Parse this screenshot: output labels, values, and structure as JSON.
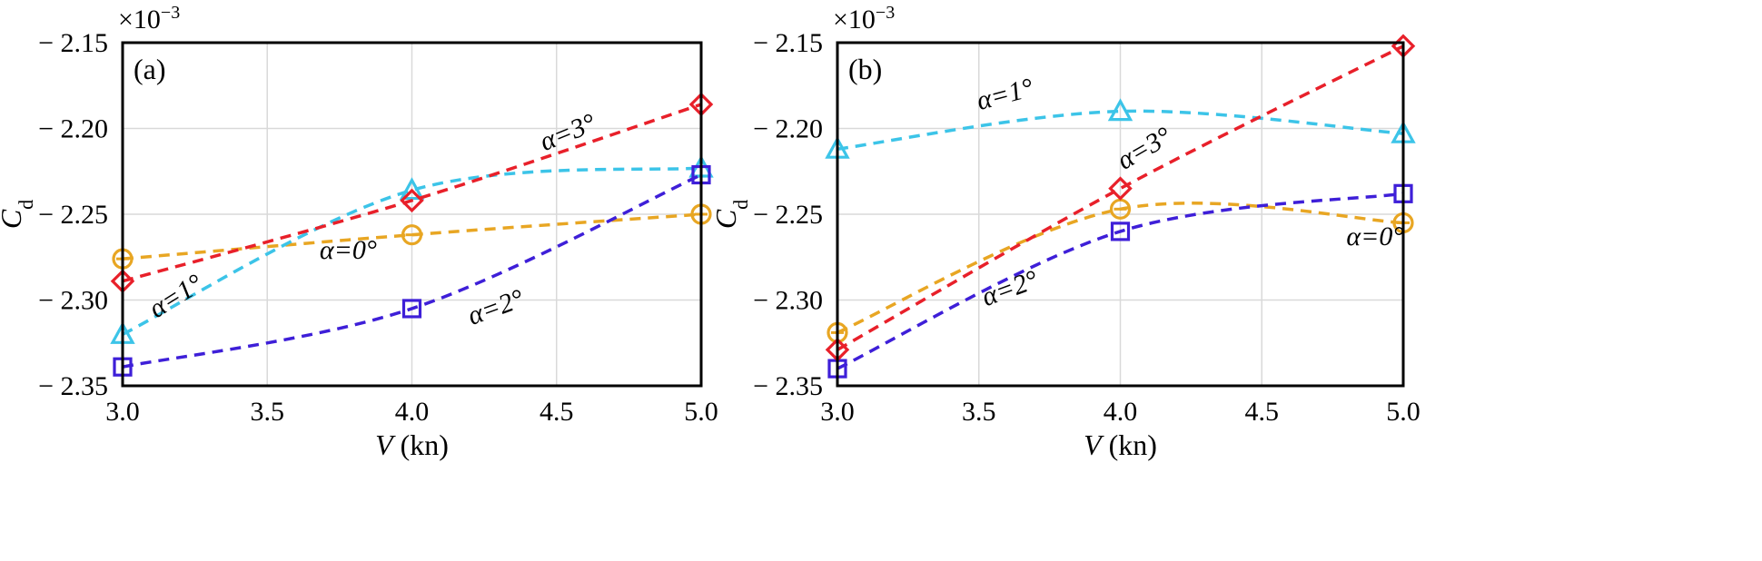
{
  "chart_data": [
    {
      "type": "line",
      "panel": "(a)",
      "xlabel_var": "V",
      "xlabel_unit": " (kn)",
      "ylabel_main": "C",
      "ylabel_sub": "d",
      "multiplier": "×10",
      "multiplier_exp": "−3",
      "xlim": [
        3.0,
        5.0
      ],
      "ylim": [
        -2.35,
        -2.15
      ],
      "xticks": [
        "3.0",
        "3.5",
        "4.0",
        "4.5",
        "5.0"
      ],
      "yticks": [
        "− 2.15",
        "− 2.20",
        "− 2.25",
        "− 2.30",
        "− 2.35"
      ],
      "grid": true,
      "x": [
        3.0,
        4.0,
        5.0
      ],
      "series": [
        {
          "name": "α=0°",
          "color": "#E8A623",
          "marker": "circle",
          "values": [
            -2.276,
            -2.262,
            -2.25
          ]
        },
        {
          "name": "α=1°",
          "color": "#3CC4E8",
          "marker": "triangle",
          "values": [
            -2.32,
            -2.236,
            -2.223
          ]
        },
        {
          "name": "α=2°",
          "color": "#3E1FD8",
          "marker": "square",
          "values": [
            -2.339,
            -2.305,
            -2.227
          ]
        },
        {
          "name": "α=3°",
          "color": "#E8202A",
          "marker": "diamond",
          "values": [
            -2.289,
            -2.242,
            -2.186
          ]
        }
      ],
      "annotations": [
        {
          "text": "α=3°",
          "x": 4.55,
          "y": -2.207,
          "rotate": -22
        },
        {
          "text": "α=0°",
          "x": 3.78,
          "y": -2.276,
          "rotate": 0
        },
        {
          "text": "α=1°",
          "x": 3.2,
          "y": -2.302,
          "rotate": -32
        },
        {
          "text": "α=2°",
          "x": 4.3,
          "y": -2.309,
          "rotate": -20
        }
      ]
    },
    {
      "type": "line",
      "panel": "(b)",
      "xlabel_var": "V",
      "xlabel_unit": " (kn)",
      "ylabel_main": "C",
      "ylabel_sub": "d",
      "multiplier": "×10",
      "multiplier_exp": "−3",
      "xlim": [
        3.0,
        5.0
      ],
      "ylim": [
        -2.35,
        -2.15
      ],
      "xticks": [
        "3.0",
        "3.5",
        "4.0",
        "4.5",
        "5.0"
      ],
      "yticks": [
        "− 2.15",
        "− 2.20",
        "− 2.25",
        "− 2.30",
        "− 2.35"
      ],
      "grid": true,
      "x": [
        3.0,
        4.0,
        5.0
      ],
      "series": [
        {
          "name": "α=0°",
          "color": "#E8A623",
          "marker": "circle",
          "values": [
            -2.319,
            -2.247,
            -2.255
          ]
        },
        {
          "name": "α=1°",
          "color": "#3CC4E8",
          "marker": "triangle",
          "values": [
            -2.212,
            -2.19,
            -2.203
          ]
        },
        {
          "name": "α=2°",
          "color": "#3E1FD8",
          "marker": "square",
          "values": [
            -2.34,
            -2.26,
            -2.238
          ]
        },
        {
          "name": "α=3°",
          "color": "#E8202A",
          "marker": "diamond",
          "values": [
            -2.329,
            -2.235,
            -2.152
          ]
        }
      ],
      "annotations": [
        {
          "text": "α=1°",
          "x": 3.6,
          "y": -2.185,
          "rotate": -15
        },
        {
          "text": "α=3°",
          "x": 4.1,
          "y": -2.216,
          "rotate": -30
        },
        {
          "text": "α=2°",
          "x": 3.62,
          "y": -2.298,
          "rotate": -20
        },
        {
          "text": "α=0°",
          "x": 4.9,
          "y": -2.268,
          "rotate": 0
        }
      ]
    }
  ]
}
